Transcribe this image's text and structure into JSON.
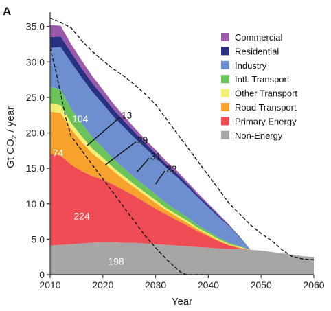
{
  "panel_label": "A",
  "chart_data": {
    "type": "area",
    "title": "",
    "xlabel": "Year",
    "ylabel": "Gt CO2 / year",
    "xlim": [
      2010,
      2060
    ],
    "ylim": [
      0,
      37
    ],
    "xticks": [
      2010,
      2020,
      2030,
      2040,
      2050,
      2060
    ],
    "yticks": [
      0,
      5.0,
      10.0,
      15.0,
      20.0,
      25.0,
      30.0,
      35.0
    ],
    "ytick_labels": [
      "0",
      "5.0",
      "10.0",
      "15.0",
      "20.0",
      "25.0",
      "30.0",
      "35.0"
    ],
    "grid": false,
    "legend_position": "top-right",
    "x": [
      2010,
      2012,
      2014,
      2016,
      2018,
      2020,
      2022,
      2024,
      2026,
      2028,
      2030,
      2032,
      2034,
      2036,
      2038,
      2040,
      2042,
      2044,
      2046,
      2048,
      2050,
      2052,
      2054,
      2056,
      2058,
      2060
    ],
    "series": [
      {
        "name": "Non-Energy",
        "color": "#a8a5a5",
        "values": [
          4.1,
          4.2,
          4.3,
          4.4,
          4.5,
          4.6,
          4.6,
          4.5,
          4.5,
          4.4,
          4.3,
          4.2,
          4.1,
          4.0,
          3.9,
          3.8,
          3.7,
          3.6,
          3.6,
          3.5,
          3.4,
          3.2,
          3.0,
          2.8,
          2.6,
          2.5
        ]
      },
      {
        "name": "Primary Energy",
        "color": "#ef4b54",
        "values": [
          12.9,
          12.6,
          11.2,
          10.2,
          9.4,
          8.8,
          8.1,
          7.4,
          6.6,
          5.8,
          5.0,
          4.3,
          3.6,
          2.9,
          2.2,
          1.6,
          1.0,
          0.5,
          0.1,
          0.0,
          0.0,
          0.0,
          0.0,
          0.0,
          0.0,
          0.0
        ]
      },
      {
        "name": "Road Transport",
        "color": "#f7a22c",
        "values": [
          6.0,
          6.0,
          5.0,
          4.1,
          3.2,
          2.5,
          1.9,
          1.5,
          1.2,
          1.0,
          0.8,
          0.6,
          0.5,
          0.4,
          0.3,
          0.2,
          0.1,
          0.1,
          0.1,
          0.0,
          0.0,
          0.0,
          0.0,
          0.0,
          0.0,
          0.0
        ]
      },
      {
        "name": "Other Transport",
        "color": "#f2ef72",
        "values": [
          1.2,
          1.1,
          0.9,
          0.8,
          0.7,
          0.6,
          0.5,
          0.5,
          0.4,
          0.4,
          0.4,
          0.3,
          0.3,
          0.3,
          0.2,
          0.2,
          0.2,
          0.1,
          0.1,
          0.0,
          0.0,
          0.0,
          0.0,
          0.0,
          0.0,
          0.0
        ]
      },
      {
        "name": "Intl. Transport",
        "color": "#6ac45a",
        "values": [
          2.3,
          2.2,
          2.0,
          1.8,
          1.6,
          1.4,
          1.2,
          1.1,
          1.0,
          0.9,
          0.8,
          0.7,
          0.6,
          0.5,
          0.4,
          0.3,
          0.2,
          0.2,
          0.1,
          0.0,
          0.0,
          0.0,
          0.0,
          0.0,
          0.0,
          0.0
        ]
      },
      {
        "name": "Industry",
        "color": "#6d8fcf",
        "values": [
          5.5,
          6.0,
          6.5,
          6.5,
          6.4,
          6.2,
          6.0,
          5.8,
          5.6,
          5.4,
          5.2,
          5.0,
          4.7,
          4.3,
          3.9,
          3.4,
          2.9,
          2.3,
          1.2,
          0.0,
          0.0,
          0.0,
          0.0,
          0.0,
          0.0,
          0.0
        ]
      },
      {
        "name": "Residential",
        "color": "#283182",
        "values": [
          1.5,
          1.5,
          1.4,
          1.3,
          1.2,
          1.1,
          1.0,
          0.9,
          0.8,
          0.7,
          0.6,
          0.5,
          0.5,
          0.4,
          0.3,
          0.3,
          0.2,
          0.1,
          0.1,
          0.0,
          0.0,
          0.0,
          0.0,
          0.0,
          0.0,
          0.0
        ]
      },
      {
        "name": "Commercial",
        "color": "#9b59ab",
        "values": [
          1.7,
          1.5,
          1.2,
          1.1,
          1.0,
          0.9,
          0.8,
          0.7,
          0.6,
          0.5,
          0.5,
          0.4,
          0.4,
          0.3,
          0.3,
          0.2,
          0.2,
          0.1,
          0.0,
          0.0,
          0.0,
          0.0,
          0.0,
          0.0,
          0.0,
          0.0
        ]
      }
    ],
    "legend_order": [
      "Commercial",
      "Residential",
      "Industry",
      "Intl. Transport",
      "Other Transport",
      "Road Transport",
      "Primary Energy",
      "Non-Energy"
    ],
    "reference_lines": [
      {
        "style": "dashed",
        "x": [
          2010,
          2012,
          2014,
          2016,
          2018,
          2020,
          2022,
          2024,
          2026,
          2028,
          2030,
          2032,
          2034,
          2036,
          2038,
          2040,
          2042,
          2044,
          2046,
          2048,
          2050,
          2052,
          2054,
          2056,
          2058,
          2060
        ],
        "y": [
          36.2,
          35.6,
          34.8,
          33.0,
          31.5,
          30.2,
          29.0,
          28.0,
          26.8,
          25.5,
          24.0,
          22.0,
          20.0,
          18.0,
          16.0,
          14.0,
          12.0,
          10.0,
          8.5,
          7.0,
          5.8,
          4.8,
          3.5,
          2.5,
          2.2,
          2.1
        ]
      },
      {
        "style": "dashed",
        "x": [
          2010,
          2011,
          2012,
          2013,
          2014,
          2016,
          2018,
          2020,
          2022,
          2024,
          2026,
          2028,
          2030,
          2032,
          2034,
          2035,
          2036,
          2038,
          2040
        ],
        "y": [
          32.0,
          29.0,
          25.5,
          22.0,
          19.5,
          17.5,
          15.5,
          13.5,
          11.5,
          9.5,
          7.5,
          5.5,
          3.8,
          2.2,
          0.8,
          0.2,
          0.0,
          0.0,
          0.0
        ]
      }
    ],
    "annotations": [
      {
        "text": "104",
        "x": 2015.7,
        "y": 22.0,
        "color": "#ffffff"
      },
      {
        "text": "74",
        "x": 2011.5,
        "y": 17.2,
        "color": "#ffffff"
      },
      {
        "text": "224",
        "x": 2016.0,
        "y": 8.3,
        "color": "#ffffff"
      },
      {
        "text": "198",
        "x": 2022.5,
        "y": 1.9,
        "color": "#ffffff"
      },
      {
        "text": "13",
        "x": 2023.5,
        "y": 22.5,
        "color": "#111111",
        "leader_to": [
          2017.0,
          18.2
        ]
      },
      {
        "text": "29",
        "x": 2026.5,
        "y": 19.0,
        "color": "#111111",
        "leader_to": [
          2020.5,
          15.5
        ]
      },
      {
        "text": "31",
        "x": 2029.0,
        "y": 16.7,
        "color": "#111111",
        "leader_to": [
          2026.5,
          14.5
        ]
      },
      {
        "text": "22",
        "x": 2032.0,
        "y": 14.9,
        "color": "#111111",
        "leader_to": [
          2030.0,
          12.8
        ]
      }
    ]
  }
}
